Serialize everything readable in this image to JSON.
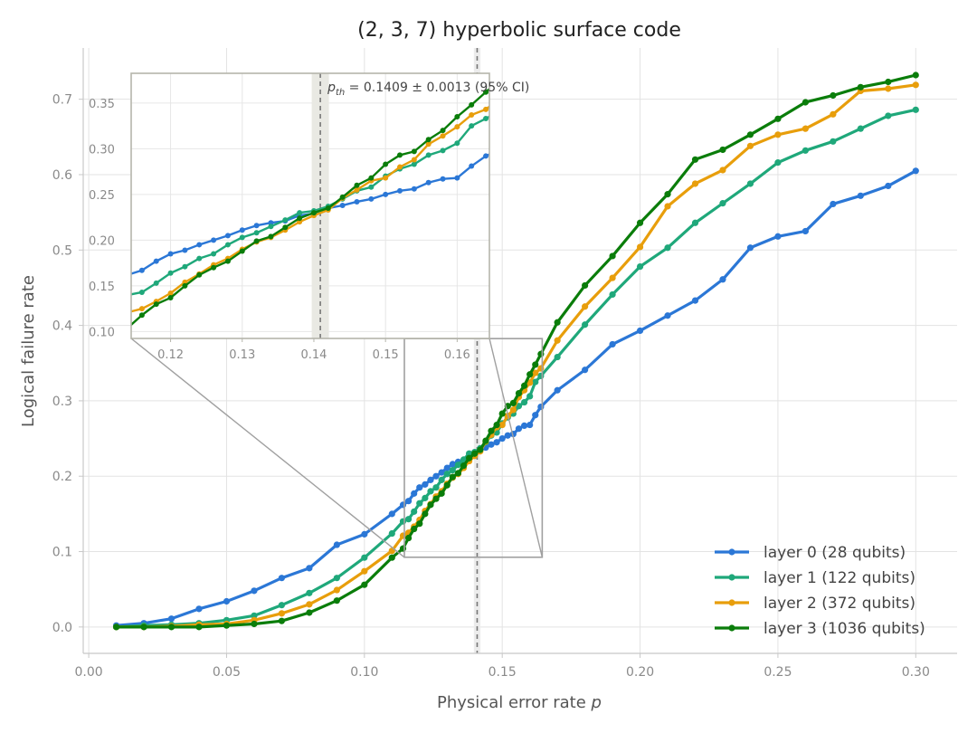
{
  "chart_data": {
    "type": "line",
    "title": "(2, 3, 7) hyperbolic surface code",
    "xlabel": "Physical error rate",
    "xlabel_var": "p",
    "ylabel": "Logical failure rate",
    "xlim": [
      -0.002,
      0.315
    ],
    "ylim": [
      -0.035,
      0.768
    ],
    "xticks": [
      0.0,
      0.05,
      0.1,
      0.15,
      0.2,
      0.25,
      0.3
    ],
    "xtick_labels": [
      "0.00",
      "0.05",
      "0.10",
      "0.15",
      "0.20",
      "0.25",
      "0.30"
    ],
    "yticks": [
      0.0,
      0.1,
      0.2,
      0.3,
      0.4,
      0.5,
      0.6,
      0.7
    ],
    "ytick_labels": [
      "0.0",
      "0.1",
      "0.2",
      "0.3",
      "0.4",
      "0.5",
      "0.6",
      "0.7"
    ],
    "grid": true,
    "legend_position": "bottom-right",
    "threshold": {
      "value": 0.1409,
      "ci_low": 0.1397,
      "ci_high": 0.1421,
      "label_sym": "p",
      "label_sub": "th",
      "label_text": " = 0.1409 ± 0.0013 (95% CI)"
    },
    "inset": {
      "xlim": [
        0.1145,
        0.1645
      ],
      "ylim": [
        0.0925,
        0.3825
      ],
      "xticks": [
        0.12,
        0.13,
        0.14,
        0.15,
        0.16
      ],
      "xtick_labels": [
        "0.12",
        "0.13",
        "0.14",
        "0.15",
        "0.16"
      ],
      "yticks": [
        0.1,
        0.15,
        0.2,
        0.25,
        0.3,
        0.35
      ],
      "ytick_labels": [
        "0.10",
        "0.15",
        "0.20",
        "0.25",
        "0.30",
        "0.35"
      ]
    },
    "x": [
      0.01,
      0.02,
      0.03,
      0.04,
      0.05,
      0.06,
      0.07,
      0.08,
      0.09,
      0.1,
      0.11,
      0.114,
      0.116,
      0.118,
      0.12,
      0.122,
      0.124,
      0.126,
      0.128,
      0.13,
      0.132,
      0.134,
      0.136,
      0.138,
      0.14,
      0.142,
      0.144,
      0.146,
      0.148,
      0.15,
      0.152,
      0.154,
      0.156,
      0.158,
      0.16,
      0.162,
      0.164,
      0.17,
      0.18,
      0.19,
      0.2,
      0.21,
      0.22,
      0.23,
      0.24,
      0.25,
      0.26,
      0.27,
      0.28,
      0.29,
      0.3
    ],
    "series": [
      {
        "name": "layer 0 (28 qubits)",
        "color": "#2b77d6",
        "values": [
          0.002,
          0.005,
          0.011,
          0.024,
          0.034,
          0.048,
          0.065,
          0.078,
          0.109,
          0.123,
          0.15,
          0.162,
          0.167,
          0.177,
          0.185,
          0.189,
          0.195,
          0.2,
          0.205,
          0.211,
          0.216,
          0.219,
          0.221,
          0.227,
          0.229,
          0.235,
          0.238,
          0.242,
          0.245,
          0.25,
          0.254,
          0.256,
          0.263,
          0.267,
          0.268,
          0.281,
          0.292,
          0.314,
          0.341,
          0.375,
          0.393,
          0.413,
          0.433,
          0.461,
          0.503,
          0.518,
          0.525,
          0.561,
          0.572,
          0.585,
          0.605
        ]
      },
      {
        "name": "layer 1 (122 qubits)",
        "color": "#1fa87a",
        "values": [
          0.0,
          0.002,
          0.003,
          0.005,
          0.009,
          0.015,
          0.029,
          0.045,
          0.065,
          0.092,
          0.124,
          0.14,
          0.143,
          0.153,
          0.164,
          0.171,
          0.18,
          0.185,
          0.195,
          0.203,
          0.208,
          0.215,
          0.222,
          0.23,
          0.232,
          0.237,
          0.245,
          0.254,
          0.258,
          0.27,
          0.278,
          0.283,
          0.293,
          0.298,
          0.306,
          0.325,
          0.333,
          0.358,
          0.401,
          0.441,
          0.478,
          0.503,
          0.536,
          0.562,
          0.588,
          0.616,
          0.632,
          0.644,
          0.661,
          0.678,
          0.686
        ]
      },
      {
        "name": "layer 2 (372 qubits)",
        "color": "#e89e0b",
        "values": [
          0.0,
          0.0,
          0.001,
          0.003,
          0.004,
          0.009,
          0.018,
          0.03,
          0.049,
          0.074,
          0.101,
          0.121,
          0.125,
          0.133,
          0.142,
          0.154,
          0.163,
          0.173,
          0.18,
          0.19,
          0.198,
          0.203,
          0.211,
          0.22,
          0.227,
          0.233,
          0.246,
          0.255,
          0.265,
          0.268,
          0.28,
          0.288,
          0.305,
          0.314,
          0.324,
          0.337,
          0.343,
          0.38,
          0.425,
          0.463,
          0.504,
          0.558,
          0.588,
          0.606,
          0.638,
          0.653,
          0.661,
          0.68,
          0.711,
          0.714,
          0.719
        ]
      },
      {
        "name": "layer 3 (1036 qubits)",
        "color": "#0a7d0a",
        "values": [
          0.0,
          0.0,
          0.0,
          0.0,
          0.002,
          0.004,
          0.008,
          0.019,
          0.035,
          0.056,
          0.092,
          0.104,
          0.118,
          0.13,
          0.137,
          0.15,
          0.162,
          0.17,
          0.177,
          0.188,
          0.199,
          0.204,
          0.214,
          0.224,
          0.23,
          0.235,
          0.247,
          0.26,
          0.268,
          0.283,
          0.293,
          0.297,
          0.31,
          0.32,
          0.335,
          0.348,
          0.362,
          0.404,
          0.453,
          0.492,
          0.536,
          0.574,
          0.62,
          0.633,
          0.653,
          0.674,
          0.696,
          0.705,
          0.716,
          0.723,
          0.732
        ]
      }
    ]
  }
}
